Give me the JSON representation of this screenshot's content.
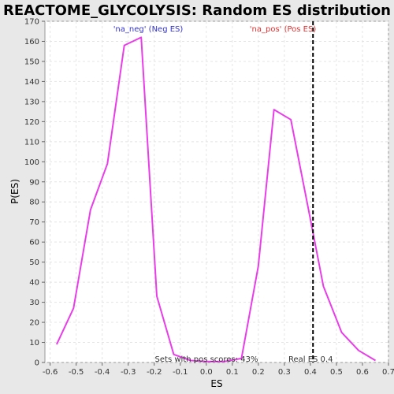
{
  "chart_data": {
    "type": "line",
    "title": "REACTOME_GLYCOLYSIS: Random ES distribution",
    "xlabel": "ES",
    "ylabel": "P(ES)",
    "xlim": [
      -0.62,
      0.7
    ],
    "ylim": [
      0,
      170
    ],
    "x_ticks": [
      -0.6,
      -0.5,
      -0.4,
      -0.3,
      -0.2,
      -0.1,
      0.0,
      0.1,
      0.2,
      0.3,
      0.4,
      0.5,
      0.6,
      0.7
    ],
    "x_tick_labels": [
      "-0.6",
      "-0.5",
      "-0.4",
      "-0.3",
      "-0.2",
      "-0.1",
      "0.0",
      "0.1",
      "0.2",
      "0.3",
      "0.4",
      "0.5",
      "0.6",
      "0.7"
    ],
    "y_ticks": [
      0,
      10,
      20,
      30,
      40,
      50,
      60,
      70,
      80,
      90,
      100,
      110,
      120,
      130,
      140,
      150,
      160,
      170
    ],
    "y_tick_labels": [
      "0",
      "10",
      "20",
      "30",
      "40",
      "50",
      "60",
      "70",
      "80",
      "90",
      "100",
      "110",
      "120",
      "130",
      "140",
      "150",
      "160",
      "170"
    ],
    "grid": true,
    "series": [
      {
        "color": "#e83ee8",
        "x": [
          -0.575,
          -0.51,
          -0.445,
          -0.38,
          -0.315,
          -0.25,
          -0.19,
          -0.125,
          -0.06,
          0.0,
          0.07,
          0.135,
          0.2,
          0.26,
          0.325,
          0.39,
          0.45,
          0.52,
          0.585,
          0.65
        ],
        "y": [
          9,
          27,
          76,
          99,
          158,
          162,
          33,
          4,
          1,
          0.5,
          0.5,
          2,
          48,
          126,
          121,
          78,
          38,
          15,
          6,
          1
        ]
      }
    ],
    "vline": {
      "x": 0.41,
      "label": "Real ES 0.4",
      "color": "#000000",
      "style": "dashed"
    },
    "annotations": {
      "neg_label": "'na_neg' (Neg ES)",
      "pos_label": "'na_pos' (Pos ES)",
      "sets_text": "Sets with pos scores: 43%",
      "neg_color": "#3333cc",
      "pos_color": "#dd3333"
    }
  }
}
